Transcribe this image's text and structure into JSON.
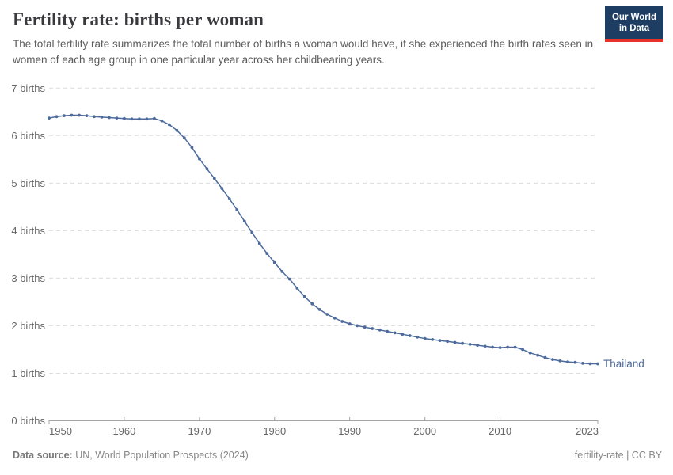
{
  "header": {
    "title": "Fertility rate: births per woman",
    "subtitle": "The total fertility rate summarizes the total number of births a woman would have, if she experienced the birth rates seen in women of each age group in one particular year across her childbearing years.",
    "logo": {
      "line1": "Our World",
      "line2": "in Data"
    }
  },
  "colors": {
    "series_thailand": "#4C6A9C",
    "logo_background": "#1d3d63",
    "logo_stripe": "#e7332b",
    "gridline": "#dcdcdc",
    "axis": "#a5a5a5",
    "tick_label": "#666666"
  },
  "chart_data": {
    "type": "line",
    "title": "Fertility rate: births per woman",
    "xlabel": "",
    "ylabel": "births",
    "xlim": [
      1950,
      2023
    ],
    "ylim": [
      0,
      7
    ],
    "grid": "horizontal-dashed",
    "legend_position": "end-of-line-label",
    "x_ticks": [
      1950,
      1960,
      1970,
      1980,
      1990,
      2000,
      2010,
      2023
    ],
    "y_ticks": [
      0,
      1,
      2,
      3,
      4,
      5,
      6,
      7
    ],
    "y_tick_suffix": " births",
    "series": [
      {
        "name": "Thailand",
        "color": "#4C6A9C",
        "years": [
          1950,
          1951,
          1952,
          1953,
          1954,
          1955,
          1956,
          1957,
          1958,
          1959,
          1960,
          1961,
          1962,
          1963,
          1964,
          1965,
          1966,
          1967,
          1968,
          1969,
          1970,
          1971,
          1972,
          1973,
          1974,
          1975,
          1976,
          1977,
          1978,
          1979,
          1980,
          1981,
          1982,
          1983,
          1984,
          1985,
          1986,
          1987,
          1988,
          1989,
          1990,
          1991,
          1992,
          1993,
          1994,
          1995,
          1996,
          1997,
          1998,
          1999,
          2000,
          2001,
          2002,
          2003,
          2004,
          2005,
          2006,
          2007,
          2008,
          2009,
          2010,
          2011,
          2012,
          2013,
          2014,
          2015,
          2016,
          2017,
          2018,
          2019,
          2020,
          2021,
          2022,
          2023
        ],
        "values": [
          6.37,
          6.4,
          6.42,
          6.43,
          6.43,
          6.42,
          6.4,
          6.39,
          6.38,
          6.37,
          6.36,
          6.35,
          6.35,
          6.35,
          6.36,
          6.31,
          6.23,
          6.11,
          5.95,
          5.75,
          5.51,
          5.3,
          5.1,
          4.89,
          4.67,
          4.44,
          4.2,
          3.96,
          3.73,
          3.52,
          3.33,
          3.14,
          2.98,
          2.79,
          2.61,
          2.46,
          2.34,
          2.24,
          2.16,
          2.09,
          2.04,
          2.0,
          1.97,
          1.94,
          1.91,
          1.88,
          1.85,
          1.82,
          1.79,
          1.76,
          1.73,
          1.71,
          1.69,
          1.67,
          1.65,
          1.63,
          1.61,
          1.59,
          1.57,
          1.55,
          1.54,
          1.55,
          1.55,
          1.5,
          1.43,
          1.38,
          1.33,
          1.29,
          1.26,
          1.24,
          1.23,
          1.21,
          1.2,
          1.2
        ]
      }
    ]
  },
  "footer": {
    "datasource_label": "Data source:",
    "datasource_value": " UN, World Population Prospects (2024)",
    "license": "fertility-rate | CC BY"
  }
}
